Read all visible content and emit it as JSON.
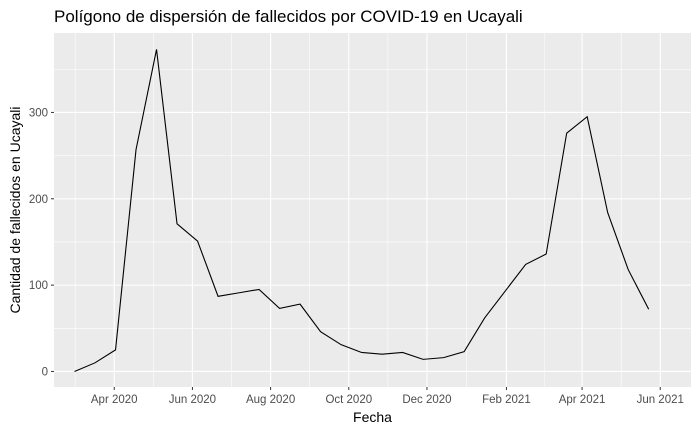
{
  "chart_data": {
    "type": "line",
    "title": "Polígono de dispersión de fallecidos por COVID-19 en Ucayali",
    "xlabel": "Fecha",
    "ylabel": "Cantidad de fallecidos en Ucayali",
    "x_ticks": [
      {
        "date": "2020-04-01",
        "label": "Apr 2020"
      },
      {
        "date": "2020-06-01",
        "label": "Jun 2020"
      },
      {
        "date": "2020-08-01",
        "label": "Aug 2020"
      },
      {
        "date": "2020-10-01",
        "label": "Oct 2020"
      },
      {
        "date": "2020-12-01",
        "label": "Dec 2020"
      },
      {
        "date": "2021-02-01",
        "label": "Feb 2021"
      },
      {
        "date": "2021-04-01",
        "label": "Apr 2021"
      },
      {
        "date": "2021-06-01",
        "label": "Jun 2021"
      }
    ],
    "y_ticks": [
      0,
      100,
      200,
      300
    ],
    "xlim": [
      "2020-02-14",
      "2021-06-25"
    ],
    "ylim": [
      -18,
      392
    ],
    "grid": true,
    "background": "#ebebeb",
    "grid_color": "#ffffff",
    "line_color": "#000000",
    "series": [
      {
        "x": [
          "2020-03-01",
          "2020-03-17",
          "2020-04-02",
          "2020-04-18",
          "2020-05-04",
          "2020-05-20",
          "2020-06-05",
          "2020-06-21",
          "2020-07-07",
          "2020-07-23",
          "2020-08-08",
          "2020-08-24",
          "2020-09-09",
          "2020-09-25",
          "2020-10-11",
          "2020-10-27",
          "2020-11-12",
          "2020-11-28",
          "2020-12-14",
          "2020-12-30",
          "2021-01-15",
          "2021-01-31",
          "2021-02-16",
          "2021-03-04",
          "2021-03-20",
          "2021-04-05",
          "2021-04-21",
          "2021-05-07",
          "2021-05-23"
        ],
        "y": [
          0,
          10,
          25,
          257,
          373,
          171,
          151,
          87,
          91,
          95,
          73,
          78,
          46,
          31,
          22,
          20,
          22,
          14,
          16,
          23,
          62,
          93,
          124,
          136,
          276,
          295,
          184,
          118,
          72
        ]
      }
    ]
  }
}
